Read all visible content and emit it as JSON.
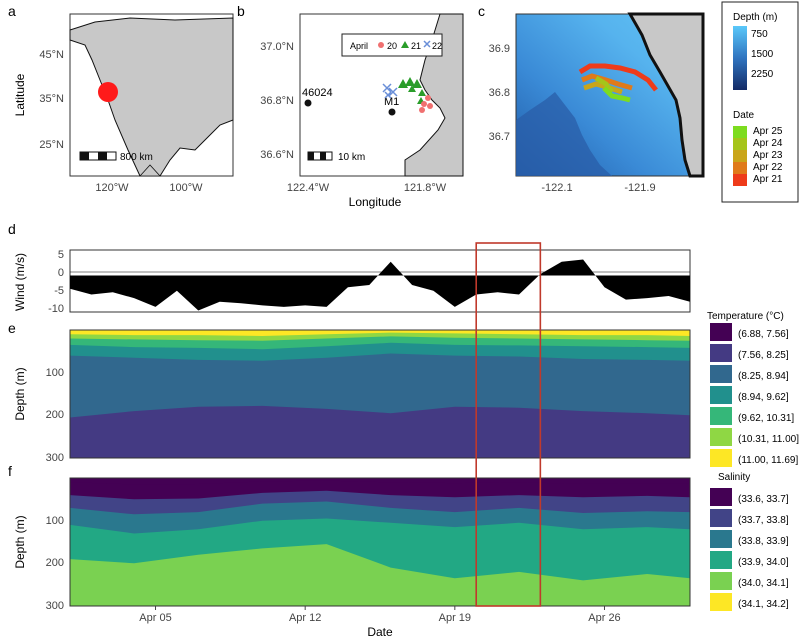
{
  "figure": {
    "panel_labels": [
      "a",
      "b",
      "c",
      "d",
      "e",
      "f"
    ]
  },
  "panel_a": {
    "ylabel": "Latitude",
    "yticks": [
      "45°N",
      "35°N",
      "25°N"
    ],
    "xticks": [
      "120°W",
      "100°W"
    ],
    "scalebar_label": "800 km",
    "colors": {
      "ocean": "#ffffff",
      "land": "#c8c8c8",
      "marker": "#ff1a1a"
    }
  },
  "panel_b": {
    "yticks": [
      "37.0°N",
      "36.8°N",
      "36.6°N"
    ],
    "xticks": [
      "122.4°W",
      "121.8°W"
    ],
    "xlabel": "Longitude",
    "scalebar_label": "10 km",
    "buoys": [
      {
        "label": "46024"
      },
      {
        "label": "M1"
      }
    ],
    "legend": {
      "title": "April",
      "entries": [
        {
          "label": "20",
          "symbol": "circle",
          "color": "#f07070"
        },
        {
          "label": "21",
          "symbol": "triangle",
          "color": "#2a9d2a"
        },
        {
          "label": "22",
          "symbol": "cross",
          "color": "#6a8fd8"
        }
      ]
    }
  },
  "panel_c": {
    "yticks": [
      "36.9",
      "36.8",
      "36.7"
    ],
    "xticks": [
      "-122.1",
      "-121.9"
    ],
    "legend_depth": {
      "title": "Depth (m)",
      "ticks": [
        "750",
        "1500",
        "2250"
      ]
    },
    "legend_date": {
      "title": "Date",
      "entries": [
        {
          "label": "Apr 25",
          "color": "#7ddc1f"
        },
        {
          "label": "Apr 24",
          "color": "#a5c41a"
        },
        {
          "label": "Apr 23",
          "color": "#c9a51a"
        },
        {
          "label": "Apr 22",
          "color": "#e07a1a"
        },
        {
          "label": "Apr 21",
          "color": "#ee3b1a"
        }
      ]
    }
  },
  "panel_d": {
    "ylabel": "Wind (m/s)",
    "yticks": [
      "5",
      "0",
      "-5",
      "-10"
    ]
  },
  "panel_e": {
    "ylabel": "Depth (m)",
    "yticks": [
      "100",
      "200",
      "300"
    ],
    "legend_title": "Temperature (°C)",
    "legend": [
      {
        "label": "(6.88, 7.56]",
        "color": "#440154"
      },
      {
        "label": "(7.56, 8.25]",
        "color": "#443a83"
      },
      {
        "label": "(8.25, 8.94]",
        "color": "#31688e"
      },
      {
        "label": "(8.94, 9.62]",
        "color": "#21908d"
      },
      {
        "label": "(9.62, 10.31]",
        "color": "#35b779"
      },
      {
        "label": "(10.31, 11.00]",
        "color": "#8fd744"
      },
      {
        "label": "(11.00, 11.69]",
        "color": "#fde725"
      }
    ]
  },
  "panel_f": {
    "ylabel": "Depth (m)",
    "yticks": [
      "100",
      "200",
      "300"
    ],
    "xlabel": "Date",
    "legend_title": "Salinity",
    "legend": [
      {
        "label": "(33.6, 33.7]",
        "color": "#440154"
      },
      {
        "label": "(33.7, 33.8]",
        "color": "#414487"
      },
      {
        "label": "(33.8, 33.9]",
        "color": "#2a788e"
      },
      {
        "label": "(33.9, 34.0]",
        "color": "#22a884"
      },
      {
        "label": "(34.0, 34.1]",
        "color": "#7ad151"
      },
      {
        "label": "(34.1, 34.2]",
        "color": "#fde725"
      }
    ]
  },
  "chart_data": [
    {
      "type": "line",
      "panel": "d",
      "ylabel": "Wind (m/s)",
      "ylim": [
        -10,
        7
      ],
      "xlim": [
        "Apr 01",
        "Apr 30"
      ],
      "series": [
        {
          "x": [
            "Apr 01",
            "Apr 02",
            "Apr 03",
            "Apr 04",
            "Apr 05",
            "Apr 06",
            "Apr 07",
            "Apr 08",
            "Apr 09",
            "Apr 10",
            "Apr 11",
            "Apr 12",
            "Apr 13",
            "Apr 14",
            "Apr 15",
            "Apr 16",
            "Apr 17",
            "Apr 18",
            "Apr 19",
            "Apr 20",
            "Apr 21",
            "Apr 22",
            "Apr 23",
            "Apr 24",
            "Apr 25",
            "Apr 26",
            "Apr 27",
            "Apr 28",
            "Apr 29",
            "Apr 30"
          ],
          "values": [
            -3,
            -6,
            -4,
            -7,
            -8,
            -5,
            -9,
            -8,
            -7,
            -9,
            -8,
            -9,
            -8,
            -4,
            -2,
            3,
            -2,
            -5,
            -8,
            -6,
            -4,
            -6,
            1,
            3,
            5,
            -4,
            -6,
            -7,
            -5,
            -8
          ]
        }
      ],
      "highlight": {
        "from": "Apr 20",
        "to": "Apr 23"
      }
    },
    {
      "type": "area",
      "panel": "e",
      "ylabel": "Depth (m)",
      "ylim": [
        300,
        0
      ],
      "xlim": [
        "Apr 01",
        "Apr 30"
      ],
      "x": [
        "Apr 01",
        "Apr 04",
        "Apr 07",
        "Apr 10",
        "Apr 13",
        "Apr 16",
        "Apr 19",
        "Apr 22",
        "Apr 25",
        "Apr 28",
        "Apr 30"
      ],
      "boundaries_depth_m": [
        {
          "lower_bin": "(7.56, 8.25]",
          "upper_bin": "(8.25, 8.94]",
          "values": [
            205,
            190,
            180,
            178,
            185,
            195,
            180,
            182,
            190,
            195,
            200
          ]
        },
        {
          "lower_bin": "(8.25, 8.94]",
          "upper_bin": "(8.94, 9.62]",
          "values": [
            60,
            65,
            70,
            72,
            65,
            55,
            60,
            62,
            68,
            70,
            72
          ]
        },
        {
          "lower_bin": "(8.94, 9.62]",
          "upper_bin": "(9.62, 10.31]",
          "values": [
            35,
            40,
            42,
            45,
            38,
            30,
            35,
            36,
            38,
            40,
            42
          ]
        },
        {
          "lower_bin": "(9.62, 10.31]",
          "upper_bin": "(10.31, 11.00]",
          "values": [
            20,
            22,
            24,
            25,
            20,
            15,
            18,
            20,
            22,
            24,
            25
          ]
        },
        {
          "lower_bin": "(10.31, 11.00]",
          "upper_bin": "(11.00, 11.69]",
          "values": [
            10,
            12,
            12,
            14,
            10,
            6,
            8,
            10,
            12,
            12,
            14
          ]
        }
      ],
      "highlight": {
        "from": "Apr 20",
        "to": "Apr 23"
      }
    },
    {
      "type": "area",
      "panel": "f",
      "ylabel": "Depth (m)",
      "xlabel": "Date",
      "ylim": [
        300,
        0
      ],
      "xlim": [
        "Apr 01",
        "Apr 30"
      ],
      "x": [
        "Apr 01",
        "Apr 04",
        "Apr 07",
        "Apr 10",
        "Apr 13",
        "Apr 16",
        "Apr 19",
        "Apr 22",
        "Apr 25",
        "Apr 28",
        "Apr 30"
      ],
      "xticks": [
        "Apr 05",
        "Apr 12",
        "Apr 19",
        "Apr 26"
      ],
      "boundaries_depth_m": [
        {
          "lower_bin": "(34.0, 34.1]",
          "upper_bin": "(34.1, 34.2]",
          "values": [
            190,
            200,
            180,
            165,
            155,
            210,
            235,
            220,
            240,
            225,
            235
          ]
        },
        {
          "lower_bin": "(33.9, 34.0]",
          "upper_bin": "(34.0, 34.1]",
          "values": [
            110,
            130,
            120,
            100,
            95,
            105,
            115,
            105,
            120,
            115,
            120
          ]
        },
        {
          "lower_bin": "(33.8, 33.9]",
          "upper_bin": "(33.9, 34.0]",
          "values": [
            70,
            85,
            80,
            60,
            55,
            70,
            80,
            70,
            82,
            78,
            80
          ]
        },
        {
          "lower_bin": "(33.7, 33.8]",
          "upper_bin": "(33.8, 33.9]",
          "values": [
            40,
            50,
            48,
            35,
            30,
            40,
            45,
            40,
            45,
            42,
            45
          ]
        },
        {
          "lower_bin": "(33.6, 33.7]",
          "upper_bin": "(33.7, 33.8]",
          "values": [
            10,
            15,
            14,
            8,
            6,
            10,
            12,
            10,
            14,
            12,
            12
          ]
        }
      ],
      "highlight": {
        "from": "Apr 20",
        "to": "Apr 23"
      }
    }
  ]
}
